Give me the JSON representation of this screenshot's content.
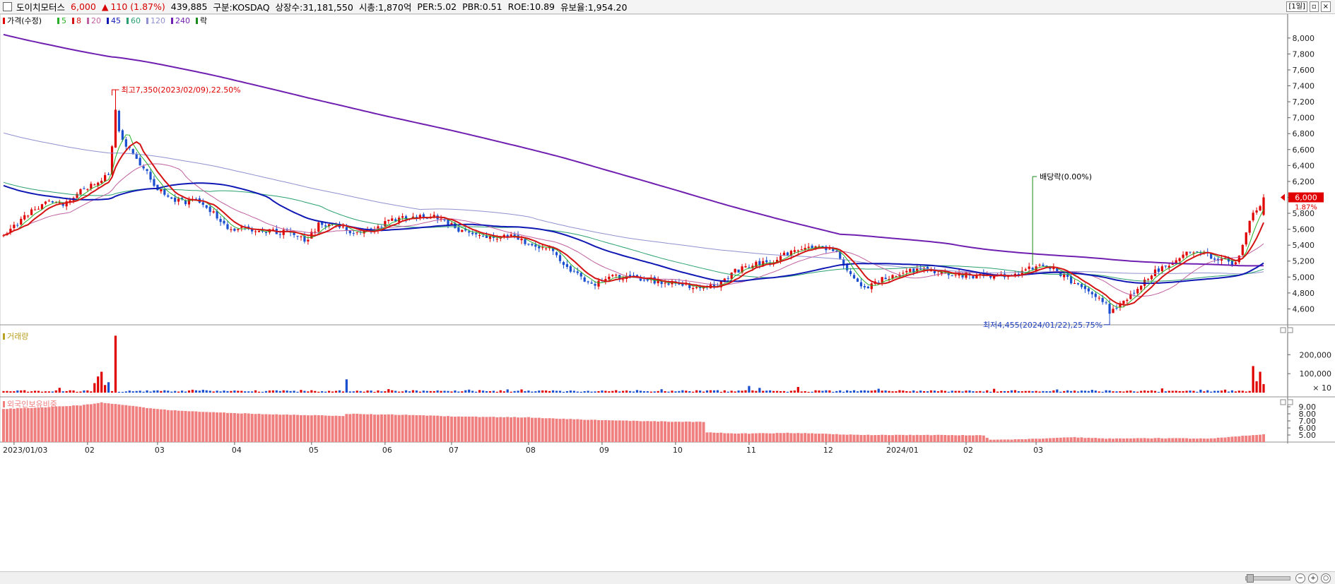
{
  "header": {
    "name": "도이치모터스",
    "price": "6,000",
    "change_arrow": "▲",
    "change": "110",
    "change_pct": "(1.87%)",
    "volume": "439,885",
    "market": "구분:KOSDAQ",
    "shares": "상장수:31,181,550",
    "mcap": "시총:1,870억",
    "per": "PER:5.02",
    "pbr": "PBR:0.51",
    "roe": "ROE:10.89",
    "float": "유보율:1,954.20",
    "period_button": "[1일]"
  },
  "legend": {
    "price": "가격(수정)",
    "ma5": "5",
    "ma8": "8",
    "ma20": "20",
    "ma45": "45",
    "ma60": "60",
    "ma120": "120",
    "ma240": "240",
    "ex": "락"
  },
  "colors": {
    "up": "#e00000",
    "down": "#1a4fd0",
    "ma5": "#28b028",
    "ma8": "#d41414",
    "ma20": "#c060a0",
    "ma45": "#1018b4",
    "ma60": "#2aa070",
    "ma120": "#9090d0",
    "ma240": "#7020b0",
    "foreign": "#f08080"
  },
  "chart_data": [
    {
      "type": "candlestick",
      "title": "",
      "ylim": [
        4400,
        8300
      ],
      "yticks": [
        4600,
        4800,
        5000,
        5200,
        5400,
        5600,
        5800,
        6000,
        6200,
        6400,
        6600,
        6800,
        7000,
        7200,
        7400,
        7600,
        7800,
        8000
      ],
      "ytick_labels": [
        "4,600",
        "4,800",
        "5,000",
        "5,200",
        "5,400",
        "5,600",
        "5,800",
        "6,000",
        "6,200",
        "6,400",
        "6,600",
        "6,800",
        "7,000",
        "7,200",
        "7,400",
        "7,600",
        "7,800",
        "8,000"
      ],
      "x_labels": [
        "2023/01/03",
        "02",
        "03",
        "04",
        "05",
        "06",
        "07",
        "08",
        "09",
        "10",
        "11",
        "12",
        "2024/01",
        "02",
        "03"
      ],
      "anchors": [
        [
          0,
          5500
        ],
        [
          6,
          5750
        ],
        [
          12,
          5950
        ],
        [
          18,
          5920
        ],
        [
          22,
          6100
        ],
        [
          26,
          6150
        ],
        [
          30,
          6300
        ],
        [
          32,
          7000
        ],
        [
          34,
          6700
        ],
        [
          38,
          6500
        ],
        [
          44,
          6100
        ],
        [
          50,
          5950
        ],
        [
          56,
          5950
        ],
        [
          60,
          5800
        ],
        [
          64,
          5600
        ],
        [
          70,
          5600
        ],
        [
          76,
          5580
        ],
        [
          82,
          5550
        ],
        [
          86,
          5450
        ],
        [
          90,
          5650
        ],
        [
          96,
          5650
        ],
        [
          100,
          5550
        ],
        [
          106,
          5600
        ],
        [
          110,
          5700
        ],
        [
          116,
          5750
        ],
        [
          124,
          5750
        ],
        [
          130,
          5600
        ],
        [
          140,
          5500
        ],
        [
          146,
          5500
        ],
        [
          150,
          5420
        ],
        [
          156,
          5350
        ],
        [
          162,
          5100
        ],
        [
          168,
          4900
        ],
        [
          174,
          5000
        ],
        [
          180,
          4980
        ],
        [
          186,
          4950
        ],
        [
          192,
          4920
        ],
        [
          198,
          4880
        ],
        [
          204,
          4900
        ],
        [
          208,
          5050
        ],
        [
          214,
          5150
        ],
        [
          220,
          5200
        ],
        [
          226,
          5350
        ],
        [
          232,
          5400
        ],
        [
          238,
          5300
        ],
        [
          242,
          5050
        ],
        [
          246,
          4850
        ],
        [
          250,
          4950
        ],
        [
          256,
          5050
        ],
        [
          262,
          5100
        ],
        [
          268,
          5050
        ],
        [
          276,
          5020
        ],
        [
          284,
          5000
        ],
        [
          290,
          5050
        ],
        [
          296,
          5150
        ],
        [
          300,
          5120
        ],
        [
          306,
          4900
        ],
        [
          312,
          4750
        ],
        [
          316,
          4600
        ],
        [
          320,
          4680
        ],
        [
          326,
          4950
        ],
        [
          330,
          5100
        ],
        [
          334,
          5200
        ],
        [
          338,
          5300
        ],
        [
          342,
          5300
        ],
        [
          346,
          5250
        ],
        [
          350,
          5200
        ],
        [
          352,
          5150
        ],
        [
          356,
          5700
        ],
        [
          358,
          5850
        ],
        [
          360,
          6000
        ]
      ],
      "last_price": "6,000",
      "last_change_pct": "1.87%",
      "annotations": {
        "high": "최고7,350(2023/02/09),22.50%",
        "low": "최저4,455(2024/01/22),25.75%",
        "dividend": "배당락(0.00%)"
      }
    },
    {
      "type": "bar",
      "title": "거래량",
      "yticks": [
        100000,
        200000
      ],
      "ytick_labels": [
        "100,000",
        "200,000"
      ],
      "unit": "× 10",
      "spikes": [
        [
          26,
          50000
        ],
        [
          27,
          85000
        ],
        [
          28,
          110000
        ],
        [
          29,
          40000
        ],
        [
          30,
          55000
        ],
        [
          32,
          300000
        ],
        [
          98,
          70000
        ],
        [
          213,
          35000
        ],
        [
          216,
          25000
        ],
        [
          227,
          30000
        ],
        [
          283,
          20000
        ],
        [
          331,
          22000
        ],
        [
          357,
          140000
        ],
        [
          358,
          60000
        ],
        [
          359,
          110000
        ],
        [
          360,
          45000
        ]
      ]
    },
    {
      "type": "bar",
      "title": "외국인보유비중",
      "yticks": [
        5,
        6,
        7,
        8,
        9
      ],
      "ytick_labels": [
        "5.00",
        "6.00",
        "7.00",
        "8.00",
        "9.00"
      ],
      "anchors": [
        [
          0,
          8.7
        ],
        [
          10,
          8.9
        ],
        [
          22,
          9.2
        ],
        [
          28,
          9.6
        ],
        [
          35,
          9.2
        ],
        [
          45,
          8.6
        ],
        [
          60,
          8.2
        ],
        [
          75,
          7.95
        ],
        [
          97,
          7.7
        ],
        [
          98,
          8.0
        ],
        [
          115,
          7.85
        ],
        [
          130,
          7.6
        ],
        [
          150,
          7.5
        ],
        [
          170,
          7.1
        ],
        [
          190,
          6.9
        ],
        [
          200,
          6.85
        ],
        [
          201,
          5.4
        ],
        [
          210,
          5.2
        ],
        [
          225,
          5.3
        ],
        [
          245,
          5.0
        ],
        [
          265,
          5.0
        ],
        [
          280,
          4.95
        ],
        [
          282,
          4.3
        ],
        [
          295,
          4.45
        ],
        [
          305,
          4.7
        ],
        [
          315,
          4.5
        ],
        [
          330,
          4.55
        ],
        [
          345,
          4.5
        ],
        [
          352,
          4.8
        ],
        [
          358,
          5.0
        ],
        [
          360,
          5.1
        ]
      ]
    }
  ]
}
